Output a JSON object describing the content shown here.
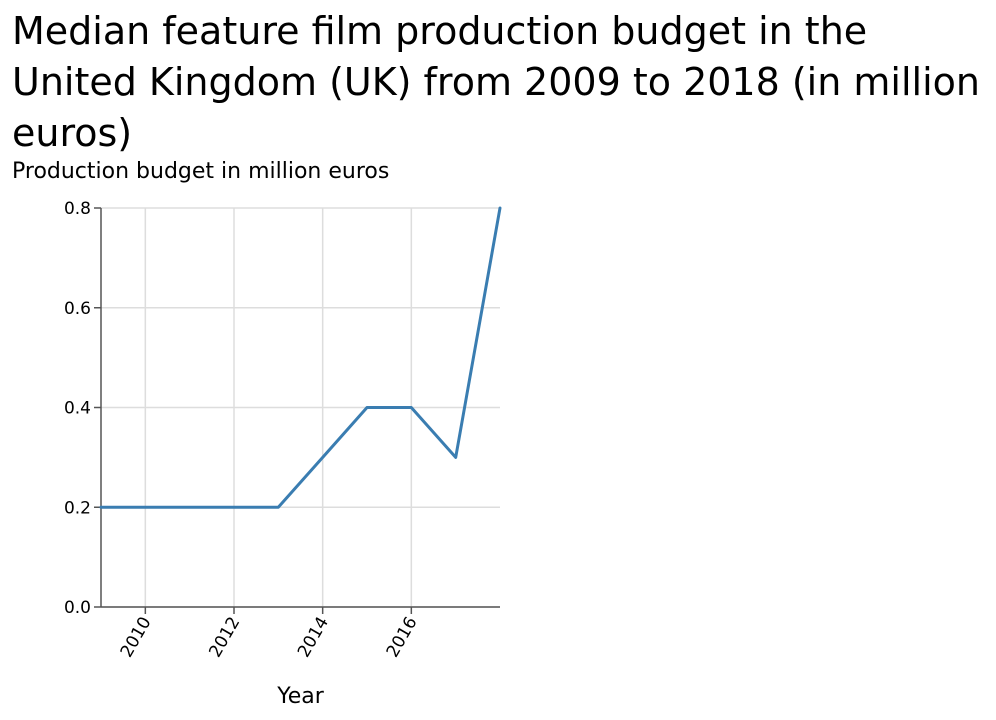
{
  "chart_data": {
    "type": "line",
    "title": "Median feature film production budget in the United Kingdom (UK) from 2009 to 2018 (in million euros)",
    "xlabel": "Year",
    "ylabel": "Production budget in million euros",
    "x": [
      2009,
      2010,
      2011,
      2012,
      2013,
      2014,
      2015,
      2016,
      2017,
      2018
    ],
    "series": [
      {
        "values": [
          0.2,
          0.2,
          0.2,
          0.2,
          0.2,
          0.3,
          0.4,
          0.4,
          0.3,
          0.8
        ],
        "color": "#3a7db1"
      }
    ],
    "xlim": [
      2009,
      2018
    ],
    "ylim": [
      0,
      0.8
    ],
    "x_ticks": [
      2010,
      2012,
      2014,
      2016
    ],
    "x_tick_labels": [
      "2010",
      "2012",
      "2014",
      "2016"
    ],
    "y_ticks": [
      0,
      0.2,
      0.4,
      0.6,
      0.8
    ],
    "y_tick_labels": [
      "0.0",
      "0.2",
      "0.4",
      "0.6",
      "0.8"
    ],
    "grid": true,
    "legend": "none"
  },
  "colors": {
    "line": "#3a7db1",
    "grid": "#dddddd",
    "axis": "#000000"
  }
}
